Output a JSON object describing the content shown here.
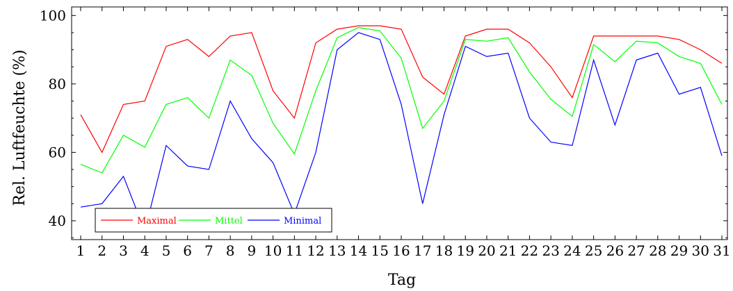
{
  "chart_data": {
    "type": "line",
    "xlabel": "Tag",
    "ylabel": "Rel. Luftfeuchte (%)",
    "x": [
      1,
      2,
      3,
      4,
      5,
      6,
      7,
      8,
      9,
      10,
      11,
      12,
      13,
      14,
      15,
      16,
      17,
      18,
      19,
      20,
      21,
      22,
      23,
      24,
      25,
      26,
      27,
      28,
      29,
      30,
      31
    ],
    "xlim": [
      1,
      31
    ],
    "ylim": [
      34.5,
      102.5
    ],
    "yticks": [
      40,
      60,
      80,
      100
    ],
    "grid": false,
    "legend_position": "bottom-left",
    "series": [
      {
        "name": "Maximal",
        "color": "#ff0000",
        "values": [
          71,
          60,
          74,
          75,
          91,
          93,
          88,
          94,
          95,
          78,
          70,
          92,
          96,
          97,
          97,
          96,
          82,
          77,
          94,
          96,
          96,
          92,
          85,
          76,
          94,
          94,
          94,
          94,
          93,
          90,
          86
        ]
      },
      {
        "name": "Mittel",
        "color": "#00ff00",
        "values": [
          56.5,
          54,
          65,
          61.5,
          74,
          76,
          70,
          87,
          82.5,
          68.5,
          59.5,
          78,
          93.5,
          96.5,
          95.5,
          87.5,
          67,
          75,
          93,
          92.5,
          93.5,
          83.5,
          75.5,
          70.5,
          91.5,
          86.5,
          92.5,
          92,
          88,
          86,
          74
        ]
      },
      {
        "name": "Minimal",
        "color": "#0000ff",
        "values": [
          44,
          45,
          53,
          37,
          62,
          56,
          55,
          75,
          64,
          57,
          42,
          60,
          90,
          95,
          93,
          74,
          45,
          71,
          91,
          88,
          89,
          70,
          63,
          62,
          87,
          68,
          87,
          89,
          77,
          79,
          59
        ]
      }
    ]
  }
}
